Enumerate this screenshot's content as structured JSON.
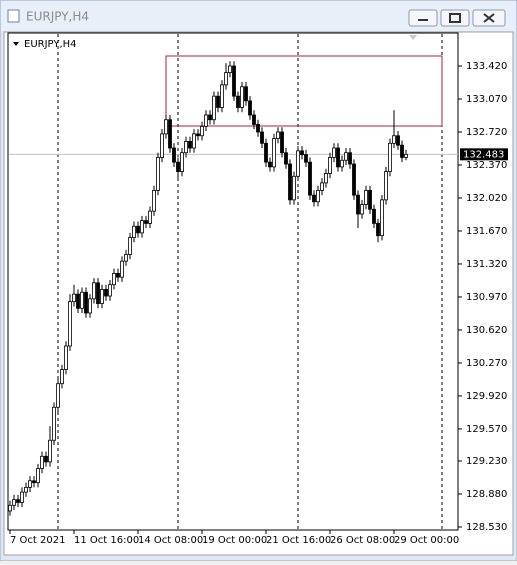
{
  "window_title": "EURJPY,H4",
  "chart_data": {
    "type": "candlestick",
    "title": "EURJPY,H4",
    "categories": [
      "7 Oct 2021",
      null,
      null,
      null,
      null,
      null,
      null,
      null,
      null,
      null,
      null,
      null,
      null,
      null,
      null,
      null,
      "11 Oct 16:00",
      null,
      null,
      null,
      null,
      null,
      null,
      null,
      null,
      null,
      null,
      null,
      null,
      null,
      null,
      null,
      "14 Oct 08:00",
      null,
      null,
      null,
      null,
      null,
      null,
      null,
      null,
      null,
      null,
      null,
      null,
      null,
      null,
      null,
      "19 Oct 00:00",
      null,
      null,
      null,
      null,
      null,
      null,
      null,
      null,
      null,
      null,
      null,
      null,
      null,
      null,
      null,
      "21 Oct 16:00",
      null,
      null,
      null,
      null,
      null,
      null,
      null,
      null,
      null,
      null,
      null,
      null,
      null,
      null,
      null,
      "26 Oct 08:00",
      null,
      null,
      null,
      null,
      null,
      null,
      null,
      null,
      null,
      null,
      null,
      null,
      null,
      null,
      null,
      "29 Oct 00:00",
      null,
      null,
      null
    ],
    "open": [
      128.7,
      128.76,
      128.82,
      128.79,
      128.9,
      128.95,
      129.02,
      129.0,
      129.15,
      129.28,
      129.22,
      129.45,
      129.8,
      130.05,
      130.2,
      130.45,
      130.92,
      131.0,
      130.85,
      131.02,
      130.8,
      130.95,
      131.12,
      130.9,
      131.05,
      130.98,
      131.1,
      131.22,
      131.18,
      131.35,
      131.42,
      131.6,
      131.72,
      131.65,
      131.78,
      131.75,
      131.88,
      132.1,
      132.45,
      132.7,
      132.85,
      132.55,
      132.4,
      132.3,
      132.5,
      132.62,
      132.55,
      132.7,
      132.68,
      132.78,
      132.9,
      132.85,
      133.1,
      132.98,
      133.22,
      133.35,
      133.42,
      133.1,
      132.98,
      133.2,
      133.05,
      132.9,
      132.8,
      132.72,
      132.6,
      132.4,
      132.35,
      132.65,
      132.72,
      132.5,
      132.38,
      132.0,
      132.25,
      132.52,
      132.48,
      132.4,
      132.05,
      131.98,
      132.1,
      132.18,
      132.28,
      132.45,
      132.55,
      132.35,
      132.42,
      132.5,
      132.38,
      132.05,
      131.85,
      131.95,
      132.1,
      131.9,
      131.75,
      131.62,
      132.0,
      132.3,
      132.6,
      132.68,
      132.58,
      132.45
    ],
    "high": [
      128.81,
      128.87,
      128.87,
      128.95,
      129.0,
      129.07,
      129.07,
      129.2,
      129.33,
      129.33,
      129.6,
      129.85,
      130.1,
      130.25,
      130.5,
      131.0,
      131.1,
      131.05,
      131.07,
      131.07,
      131.0,
      131.17,
      131.17,
      131.1,
      131.1,
      131.15,
      131.27,
      131.27,
      131.4,
      131.47,
      131.65,
      131.77,
      131.77,
      131.83,
      131.83,
      131.93,
      132.15,
      132.5,
      132.75,
      132.9,
      132.9,
      132.6,
      132.45,
      132.55,
      132.67,
      132.67,
      132.75,
      132.75,
      132.83,
      132.95,
      132.95,
      133.15,
      133.15,
      133.27,
      133.45,
      133.47,
      133.47,
      133.15,
      133.25,
      133.25,
      133.1,
      132.95,
      132.85,
      132.77,
      132.65,
      132.45,
      132.7,
      132.77,
      132.77,
      132.55,
      132.43,
      132.3,
      132.57,
      132.57,
      132.53,
      132.45,
      132.1,
      132.15,
      132.23,
      132.33,
      132.5,
      132.6,
      132.6,
      132.47,
      132.55,
      132.55,
      132.43,
      132.1,
      132.0,
      132.15,
      132.15,
      131.95,
      131.8,
      132.05,
      132.35,
      132.65,
      132.95,
      132.73,
      132.63,
      132.53
    ],
    "low": [
      128.65,
      128.71,
      128.74,
      128.74,
      128.85,
      128.9,
      128.95,
      128.95,
      129.1,
      129.17,
      129.17,
      129.4,
      129.75,
      130.0,
      130.15,
      130.4,
      130.87,
      130.8,
      130.8,
      130.75,
      130.75,
      130.9,
      130.85,
      130.85,
      130.93,
      130.93,
      131.05,
      131.13,
      131.13,
      131.3,
      131.37,
      131.55,
      131.6,
      131.6,
      131.7,
      131.7,
      131.83,
      132.05,
      132.4,
      132.65,
      132.5,
      132.35,
      132.2,
      132.25,
      132.45,
      132.5,
      132.5,
      132.63,
      132.63,
      132.73,
      132.8,
      132.8,
      132.93,
      132.93,
      133.17,
      133.3,
      133.05,
      132.93,
      132.93,
      133.0,
      132.85,
      132.75,
      132.67,
      132.55,
      132.35,
      132.3,
      132.3,
      132.6,
      132.45,
      132.33,
      131.95,
      131.95,
      132.2,
      132.43,
      132.35,
      132.0,
      131.93,
      131.93,
      132.05,
      132.13,
      132.23,
      132.4,
      132.3,
      132.3,
      132.37,
      132.33,
      132.0,
      131.7,
      131.8,
      131.9,
      131.85,
      131.7,
      131.55,
      131.57,
      131.95,
      132.25,
      132.55,
      132.53,
      132.4,
      132.42
    ],
    "close": [
      128.76,
      128.82,
      128.79,
      128.9,
      128.95,
      129.02,
      129.0,
      129.15,
      129.28,
      129.22,
      129.45,
      129.8,
      130.05,
      130.2,
      130.45,
      130.92,
      131.0,
      130.85,
      131.02,
      130.8,
      130.95,
      131.12,
      130.9,
      131.05,
      130.98,
      131.1,
      131.22,
      131.18,
      131.35,
      131.42,
      131.6,
      131.72,
      131.65,
      131.78,
      131.75,
      131.88,
      132.1,
      132.45,
      132.7,
      132.85,
      132.55,
      132.4,
      132.3,
      132.5,
      132.62,
      132.55,
      132.7,
      132.68,
      132.78,
      132.9,
      132.85,
      133.1,
      132.98,
      133.22,
      133.35,
      133.42,
      133.1,
      132.98,
      133.2,
      133.05,
      132.9,
      132.8,
      132.72,
      132.6,
      132.4,
      132.35,
      132.65,
      132.72,
      132.5,
      132.38,
      132.0,
      132.25,
      132.52,
      132.48,
      132.4,
      132.05,
      131.98,
      132.1,
      132.18,
      132.28,
      132.45,
      132.55,
      132.35,
      132.42,
      132.5,
      132.38,
      132.05,
      131.85,
      131.95,
      132.1,
      131.9,
      131.75,
      131.62,
      132.0,
      132.3,
      132.6,
      132.68,
      132.58,
      132.45,
      132.483
    ],
    "last_price": 132.483,
    "ylim": [
      128.498,
      133.77
    ],
    "yticks": [
      {
        "value": 133.42,
        "label": "133.420"
      },
      {
        "value": 133.07,
        "label": "133.070"
      },
      {
        "value": 132.72,
        "label": "132.720"
      },
      {
        "value": 132.37,
        "label": "132.370"
      },
      {
        "value": 132.02,
        "label": "132.020"
      },
      {
        "value": 131.67,
        "label": "131.670"
      },
      {
        "value": 131.32,
        "label": "131.320"
      },
      {
        "value": 130.97,
        "label": "130.970"
      },
      {
        "value": 130.62,
        "label": "130.620"
      },
      {
        "value": 130.27,
        "label": "130.270"
      },
      {
        "value": 129.92,
        "label": "129.920"
      },
      {
        "value": 129.57,
        "label": "129.570"
      },
      {
        "value": 129.23,
        "label": "129.230"
      },
      {
        "value": 128.88,
        "label": "128.880"
      },
      {
        "value": 128.53,
        "label": "128.530"
      }
    ],
    "grid": false,
    "up_color": "#ffffff",
    "down_color": "#000000"
  }
}
